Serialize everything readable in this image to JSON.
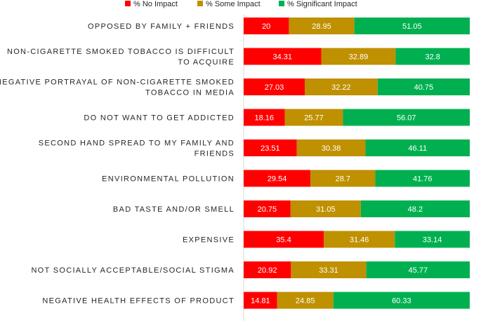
{
  "chart_data": {
    "type": "bar",
    "orientation": "horizontal",
    "stacked": true,
    "categories": [
      "OPPOSED BY FAMILY + FRIENDS",
      "NON-CIGARETTE SMOKED TOBACCO IS DIFFICULT TO ACQUIRE",
      "NEGATIVE PORTRAYAL OF NON-CIGARETTE SMOKED TOBACCO IN MEDIA",
      "DO NOT WANT TO GET ADDICTED",
      "SECOND HAND SPREAD TO MY FAMILY AND FRIENDS",
      "ENVIRONMENTAL POLLUTION",
      "BAD TASTE AND/OR SMELL",
      "EXPENSIVE",
      "NOT SOCIALLY ACCEPTABLE/SOCIAL STIGMA",
      "NEGATIVE HEALTH EFFECTS OF PRODUCT"
    ],
    "category_label_lines": [
      [
        "OPPOSED BY FAMILY + FRIENDS"
      ],
      [
        "NON-CIGARETTE SMOKED TOBACCO IS DIFFICULT",
        "TO ACQUIRE"
      ],
      [
        "NEGATIVE PORTRAYAL OF NON-CIGARETTE SMOKED",
        "TOBACCO IN MEDIA"
      ],
      [
        "DO NOT WANT TO GET ADDICTED"
      ],
      [
        "SECOND HAND SPREAD TO MY FAMILY AND",
        "FRIENDS"
      ],
      [
        "ENVIRONMENTAL POLLUTION"
      ],
      [
        "BAD TASTE AND/OR SMELL"
      ],
      [
        "EXPENSIVE"
      ],
      [
        "NOT SOCIALLY ACCEPTABLE/SOCIAL STIGMA"
      ],
      [
        "NEGATIVE HEALTH EFFECTS OF PRODUCT"
      ]
    ],
    "series": [
      {
        "name": "% No Impact",
        "color": "#ff0000",
        "values": [
          20,
          34.31,
          27.03,
          18.16,
          23.51,
          29.54,
          20.75,
          35.4,
          20.92,
          14.81
        ],
        "value_labels": [
          "20",
          "34.31",
          "27.03",
          "18.16",
          "23.51",
          "29.54",
          "20.75",
          "35.4",
          "20.92",
          "14.81"
        ]
      },
      {
        "name": "% Some Impact",
        "color": "#bf9000",
        "values": [
          28.95,
          32.89,
          32.22,
          25.77,
          30.38,
          28.7,
          31.05,
          31.46,
          33.31,
          24.85
        ],
        "value_labels": [
          "28.95",
          "32.89",
          "32.22",
          "25.77",
          "30.38",
          "28.7",
          "31.05",
          "31.46",
          "33.31",
          "24.85"
        ]
      },
      {
        "name": "% Significant Impact",
        "color": "#00b050",
        "values": [
          51.05,
          32.8,
          40.75,
          56.07,
          46.11,
          41.76,
          48.2,
          33.14,
          45.77,
          60.33
        ],
        "value_labels": [
          "51.05",
          "32.8",
          "40.75",
          "56.07",
          "46.11",
          "41.76",
          "48.2",
          "33.14",
          "45.77",
          "60.33"
        ]
      }
    ],
    "xlim": [
      0,
      100
    ],
    "legend_position": "top-center",
    "grid": false
  }
}
